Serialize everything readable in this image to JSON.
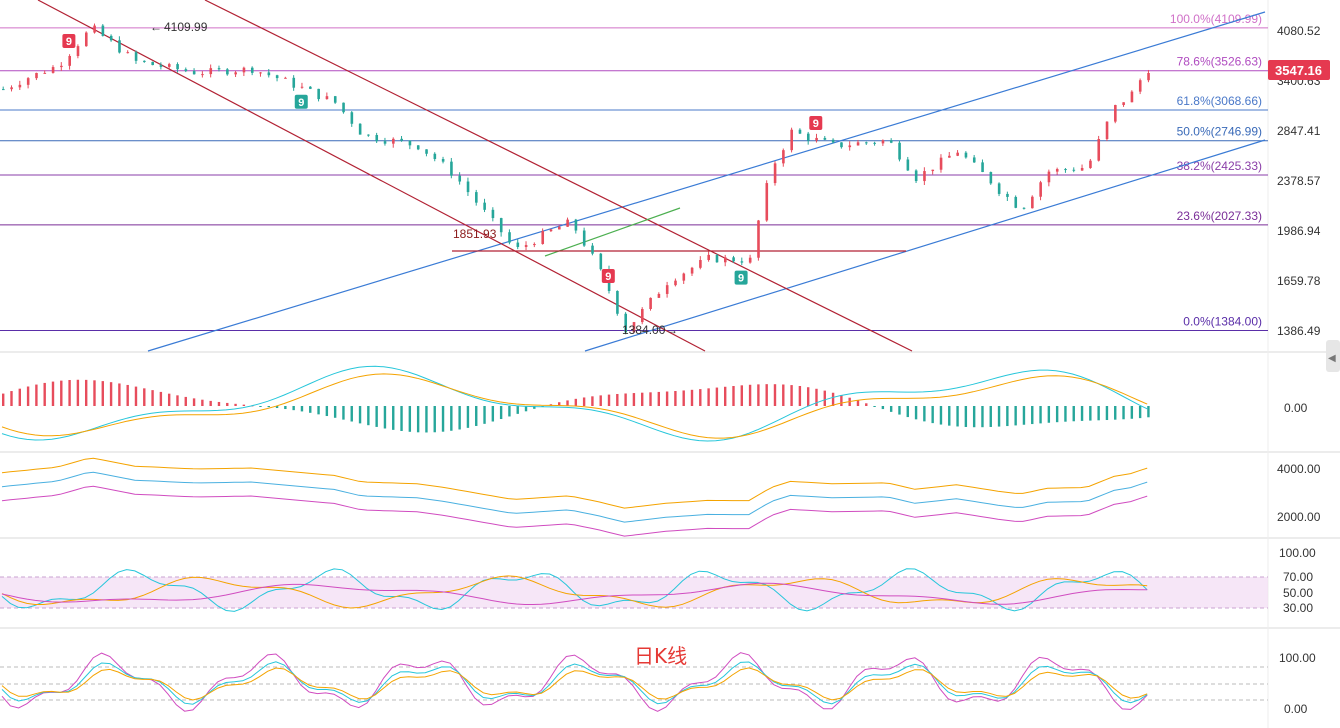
{
  "caption": "日K线",
  "colors": {
    "up": "#e74c5c",
    "down": "#26a69a",
    "fib": "#b04cc0",
    "channel": "#3a7bd5",
    "bear": "#b22234"
  },
  "chart_data": [
    {
      "type": "candlestick",
      "panel": "price",
      "y_ticks": [
        "4080.52",
        "3400.63",
        "2847.41",
        "2378.57",
        "1986.94",
        "1659.78",
        "1386.49"
      ],
      "last_price": "3547.16",
      "annotations": {
        "high": "4109.99",
        "mid": "1851.93",
        "low": "1384.00"
      },
      "fib_levels": [
        {
          "label": "100.0%(4109.99)",
          "value": 4109.99
        },
        {
          "label": "78.6%(3526.63)",
          "value": 3526.63
        },
        {
          "label": "61.8%(3068.66)",
          "value": 3068.66
        },
        {
          "label": "50.0%(2746.99)",
          "value": 2746.99
        },
        {
          "label": "38.2%(2425.33)",
          "value": 2425.33
        },
        {
          "label": "23.6%(2027.33)",
          "value": 2027.33
        },
        {
          "label": "0.0%(1384.00)",
          "value": 1384.0
        }
      ],
      "td_badges": [
        {
          "label": "9",
          "bar": 25,
          "up": true
        },
        {
          "label": "9",
          "bar": 108,
          "up": false
        },
        {
          "label": "9",
          "bar": 220,
          "up": true
        },
        {
          "label": "9",
          "bar": 268,
          "up": false
        },
        {
          "label": "9",
          "bar": 295,
          "up": true
        }
      ]
    },
    {
      "type": "macd",
      "panel": "indicator-1",
      "y_ticks": [
        "0.00"
      ]
    },
    {
      "type": "bollinger",
      "panel": "indicator-2",
      "y_ticks": [
        "4000.00",
        "2000.00"
      ]
    },
    {
      "type": "rsi",
      "panel": "indicator-3",
      "y_ticks": [
        "100.00",
        "70.00",
        "50.00",
        "30.00"
      ]
    },
    {
      "type": "kdj",
      "panel": "indicator-4",
      "y_ticks": [
        "100.00",
        "0.00"
      ]
    }
  ]
}
